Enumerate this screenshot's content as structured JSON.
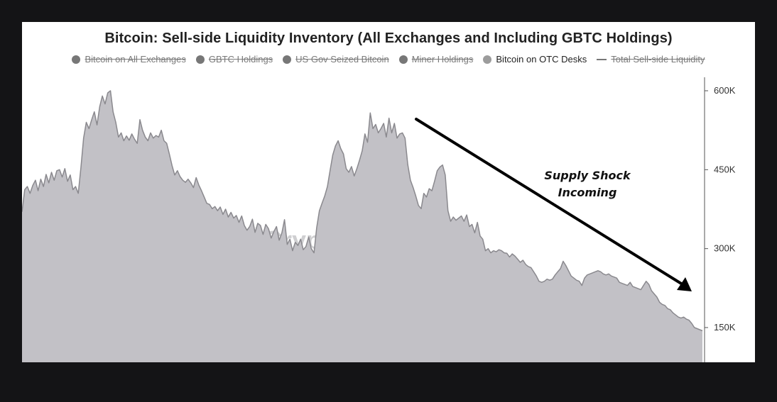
{
  "chart_data": {
    "type": "area",
    "title": "Bitcoin: Sell-side Liquidity Inventory (All Exchanges and Including GBTC Holdings)",
    "legend": [
      {
        "name": "Bitcoin on All Exchanges",
        "marker": "dot",
        "visible": false
      },
      {
        "name": "GBTC Holdings",
        "marker": "dot",
        "visible": false
      },
      {
        "name": "US Gov Seized Bitcoin",
        "marker": "dot",
        "visible": false
      },
      {
        "name": "Miner Holdings",
        "marker": "dot",
        "visible": false
      },
      {
        "name": "Bitcoin on OTC Desks",
        "marker": "dot",
        "visible": true
      },
      {
        "name": "Total Sell-side Liquidity",
        "marker": "line",
        "visible": false
      }
    ],
    "legend_placement": "top-center",
    "y_axis": {
      "position": "right",
      "ticks": [
        600000,
        450000,
        300000,
        150000
      ],
      "tick_labels": [
        "600K",
        "450K",
        "300K",
        "150K"
      ],
      "ylim": [
        85000,
        625000
      ]
    },
    "grid": false,
    "series": [
      {
        "name": "Bitcoin on OTC Desks",
        "color": "#c2c1c6",
        "line_color": "#8a898e",
        "values": [
          370000,
          412000,
          418000,
          405000,
          420000,
          430000,
          410000,
          432000,
          418000,
          441000,
          425000,
          445000,
          430000,
          448000,
          450000,
          436000,
          452000,
          428000,
          440000,
          412000,
          418000,
          405000,
          455000,
          510000,
          540000,
          528000,
          545000,
          560000,
          535000,
          570000,
          590000,
          575000,
          596000,
          600000,
          560000,
          540000,
          512000,
          520000,
          505000,
          514000,
          506000,
          518000,
          508000,
          500000,
          545000,
          525000,
          512000,
          505000,
          520000,
          510000,
          515000,
          512000,
          525000,
          505000,
          500000,
          480000,
          458000,
          440000,
          448000,
          437000,
          430000,
          426000,
          432000,
          425000,
          416000,
          435000,
          421000,
          410000,
          398000,
          386000,
          384000,
          376000,
          380000,
          372000,
          379000,
          365000,
          375000,
          360000,
          369000,
          358000,
          363000,
          350000,
          362000,
          344000,
          335000,
          342000,
          356000,
          331000,
          348000,
          344000,
          327000,
          346000,
          338000,
          320000,
          332000,
          342000,
          316000,
          330000,
          355000,
          308000,
          318000,
          296000,
          312000,
          306000,
          318000,
          298000,
          304000,
          322000,
          300000,
          292000,
          340000,
          372000,
          386000,
          400000,
          418000,
          448000,
          478000,
          495000,
          505000,
          490000,
          480000,
          452000,
          445000,
          456000,
          438000,
          452000,
          468000,
          486000,
          518000,
          502000,
          558000,
          528000,
          536000,
          520000,
          528000,
          538000,
          512000,
          548000,
          520000,
          538000,
          510000,
          518000,
          520000,
          510000,
          460000,
          430000,
          416000,
          400000,
          382000,
          376000,
          405000,
          398000,
          414000,
          410000,
          428000,
          448000,
          455000,
          459000,
          440000,
          372000,
          352000,
          360000,
          354000,
          358000,
          362000,
          352000,
          364000,
          342000,
          346000,
          330000,
          350000,
          324000,
          318000,
          296000,
          300000,
          292000,
          296000,
          294000,
          298000,
          296000,
          292000,
          291000,
          284000,
          290000,
          286000,
          280000,
          274000,
          278000,
          270000,
          266000,
          264000,
          256000,
          248000,
          238000,
          236000,
          238000,
          242000,
          240000,
          242000,
          250000,
          256000,
          262000,
          276000,
          268000,
          258000,
          248000,
          244000,
          240000,
          238000,
          230000,
          244000,
          250000,
          252000,
          254000,
          256000,
          258000,
          256000,
          252000,
          250000,
          252000,
          248000,
          246000,
          244000,
          236000,
          234000,
          232000,
          230000,
          236000,
          228000,
          226000,
          224000,
          222000,
          230000,
          238000,
          232000,
          220000,
          214000,
          208000,
          198000,
          194000,
          192000,
          186000,
          184000,
          178000,
          174000,
          170000,
          168000,
          170000,
          166000,
          164000,
          158000,
          150000,
          148000,
          146000,
          144000
        ]
      }
    ],
    "annotations": [
      {
        "text": "Supply Shock",
        "line": 1
      },
      {
        "text": "Incoming",
        "line": 2
      }
    ],
    "watermark": "CryptoQuant"
  }
}
